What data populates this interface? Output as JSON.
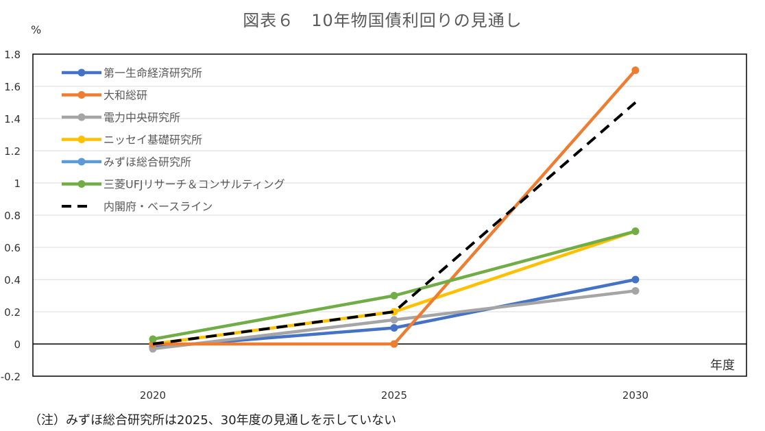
{
  "title": "図表６　10年物国債利回りの見通し",
  "footnote": "（注）みずほ総合研究所は2025、30年度の見通しを示していない",
  "chart_data": {
    "type": "line",
    "ylabel": "%",
    "xlabel": "年度",
    "categories": [
      "2020",
      "2025",
      "2030"
    ],
    "ylim": [
      -0.2,
      1.8
    ],
    "yticks": [
      -0.2,
      0,
      0.2,
      0.4,
      0.6,
      0.8,
      1,
      1.2,
      1.4,
      1.6,
      1.8
    ],
    "ytick_labels": [
      "-0.2",
      "0",
      "0.2",
      "0.4",
      "0.6",
      "0.8",
      "1",
      "1.2",
      "1.4",
      "1.6",
      "1.8"
    ],
    "grid": true,
    "legend_position": "top-left",
    "series": [
      {
        "name": "第一生命経済研究所",
        "color": "#4472C4",
        "style": "solid-marker",
        "values": [
          -0.02,
          0.1,
          0.4
        ]
      },
      {
        "name": "大和総研",
        "color": "#ED7D31",
        "style": "solid-marker",
        "values": [
          0,
          0,
          1.7
        ]
      },
      {
        "name": "電力中央研究所",
        "color": "#A5A5A5",
        "style": "solid-marker",
        "values": [
          -0.03,
          0.15,
          0.33
        ]
      },
      {
        "name": "ニッセイ基礎研究所",
        "color": "#FFC000",
        "style": "solid-marker",
        "values": [
          0,
          0.2,
          0.7
        ]
      },
      {
        "name": "みずほ総合研究所",
        "color": "#5B9BD5",
        "style": "solid-marker",
        "values": [
          0,
          null,
          null
        ]
      },
      {
        "name": "三菱UFJリサーチ＆コンサルティング",
        "color": "#70AD47",
        "style": "solid-marker",
        "values": [
          0.03,
          0.3,
          0.7
        ]
      },
      {
        "name": "内閣府・ベースライン",
        "color": "#000000",
        "style": "dashed",
        "values": [
          0,
          0.2,
          1.5
        ]
      }
    ]
  }
}
